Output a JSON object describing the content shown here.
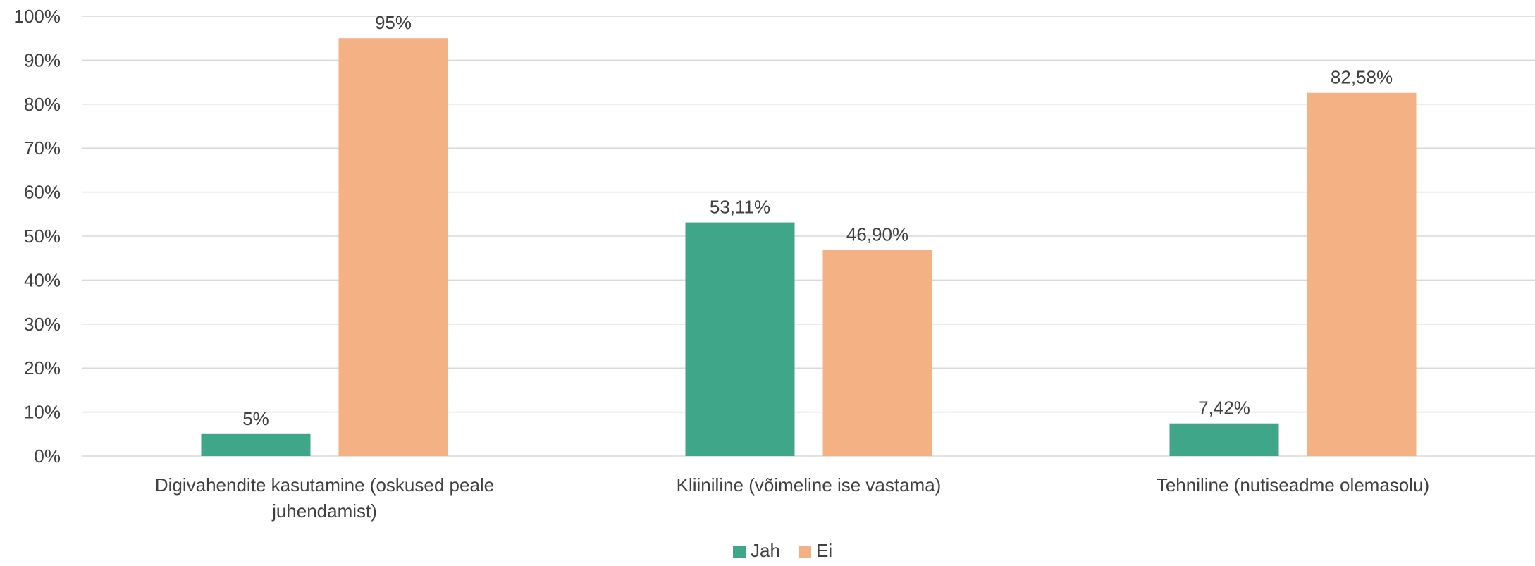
{
  "chart_data": {
    "type": "bar",
    "categories": [
      [
        "Digivahendite kasutamine (oskused peale",
        "juhendamist)"
      ],
      [
        "Kliiniline (võimeline ise vastama)"
      ],
      [
        "Tehniline (nutiseadme olemasolu)"
      ]
    ],
    "series": [
      {
        "name": "Jah",
        "color": "#3fa68a",
        "values": [
          5,
          53.11,
          7.42
        ],
        "labels": [
          "5%",
          "53,11%",
          "7,42%"
        ]
      },
      {
        "name": "Ei",
        "color": "#f4b183",
        "values": [
          95,
          46.9,
          82.58
        ],
        "labels": [
          "95%",
          "46,90%",
          "82,58%"
        ]
      }
    ],
    "y_ticks": [
      "0%",
      "10%",
      "20%",
      "30%",
      "40%",
      "50%",
      "60%",
      "70%",
      "80%",
      "90%",
      "100%"
    ],
    "ylim": [
      0,
      100
    ],
    "grid": true,
    "legend_position": "bottom",
    "title": "",
    "xlabel": "",
    "ylabel": ""
  }
}
